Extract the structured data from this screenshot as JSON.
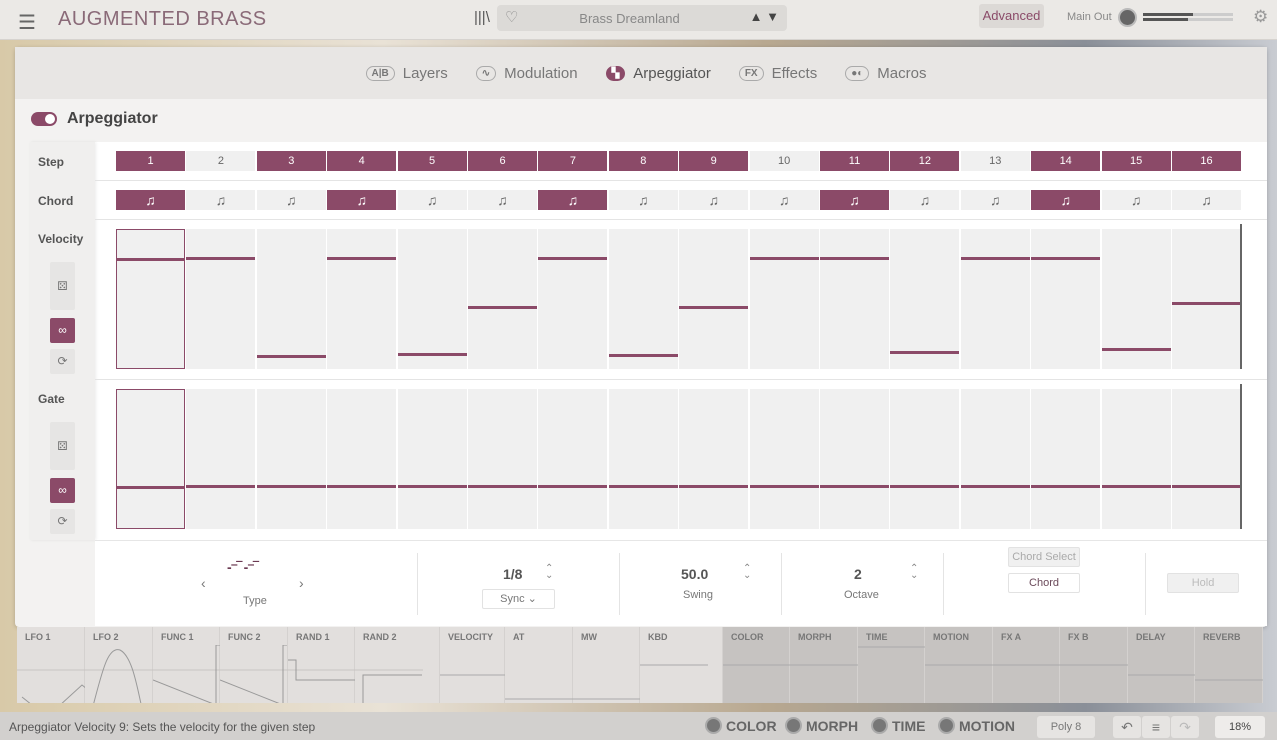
{
  "header": {
    "menu_icon": "hamburger-icon",
    "title": "AUGMENTED BRASS",
    "library_icon": "library-icon",
    "favorite_icon": "heart-icon",
    "preset_name": "Brass Dreamland",
    "prev_icon": "triangle-up",
    "next_icon": "triangle-down",
    "advanced_label": "Advanced",
    "main_out_label": "Main Out",
    "main_out_levels": [
      0.55,
      0.5
    ],
    "settings_icon": "gear-icon"
  },
  "tabs": [
    {
      "icon": "A|B",
      "label": "Layers",
      "active": false
    },
    {
      "icon": "∿",
      "label": "Modulation",
      "active": false
    },
    {
      "icon": "▚",
      "label": "Arpeggiator",
      "active": true
    },
    {
      "icon": "FX",
      "label": "Effects",
      "active": false
    },
    {
      "icon": "●◐",
      "label": "Macros",
      "active": false
    }
  ],
  "arp": {
    "title": "Arpeggiator",
    "enabled": true,
    "row_labels": {
      "step": "Step",
      "chord": "Chord",
      "velocity": "Velocity",
      "gate": "Gate"
    },
    "steps": [
      "1",
      "2",
      "3",
      "4",
      "5",
      "6",
      "7",
      "8",
      "9",
      "10",
      "11",
      "12",
      "13",
      "14",
      "15",
      "16"
    ],
    "step_active": [
      true,
      false,
      true,
      true,
      true,
      true,
      true,
      true,
      true,
      false,
      true,
      true,
      false,
      true,
      true,
      true
    ],
    "chord_icon": "♫",
    "chord_active": [
      true,
      false,
      false,
      true,
      false,
      false,
      true,
      false,
      false,
      false,
      true,
      false,
      false,
      true,
      false,
      false
    ],
    "velocity": [
      0.79,
      0.79,
      0.09,
      0.79,
      0.11,
      0.44,
      0.79,
      0.1,
      0.44,
      0.79,
      0.79,
      0.12,
      0.79,
      0.79,
      0.14,
      0.47
    ],
    "gate": [
      0.31,
      0.31,
      0.31,
      0.31,
      0.31,
      0.31,
      0.31,
      0.31,
      0.31,
      0.31,
      0.31,
      0.31,
      0.31,
      0.31,
      0.31,
      0.31
    ],
    "side_icons": {
      "random": "dice-icon",
      "link": "link-icon",
      "reset": "refresh-icon"
    },
    "type_label": "Type",
    "rate": "1/8",
    "sync": "Sync",
    "swing": "50.0",
    "swing_label": "Swing",
    "octave": "2",
    "octave_label": "Octave",
    "chord_select": "Chord Select",
    "chord_button": "Chord",
    "hold": "Hold"
  },
  "mods": [
    "LFO 1",
    "LFO 2",
    "FUNC 1",
    "FUNC 2",
    "RAND 1",
    "RAND 2",
    "VELOCITY",
    "AT",
    "MW",
    "KBD",
    "COLOR",
    "MORPH",
    "TIME",
    "MOTION",
    "FX A",
    "FX B",
    "DELAY",
    "REVERB"
  ],
  "status": {
    "text": "Arpeggiator Velocity 9: Sets the velocity for the given step",
    "macros": [
      "COLOR",
      "MORPH",
      "TIME",
      "MOTION"
    ],
    "poly": "Poly 8",
    "undo_icon": "undo-icon",
    "history_icon": "list-icon",
    "redo_icon": "redo-icon",
    "zoom": "18%"
  },
  "colors": {
    "accent": "#8b4a68"
  }
}
